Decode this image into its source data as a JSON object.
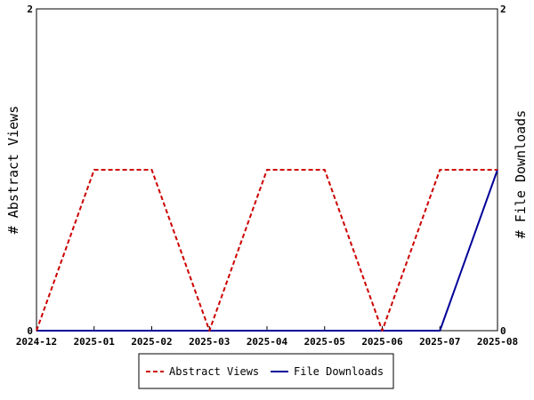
{
  "chart_data": {
    "type": "line",
    "x": [
      "2024-12",
      "2025-01",
      "2025-02",
      "2025-03",
      "2025-04",
      "2025-05",
      "2025-06",
      "2025-07",
      "2025-08"
    ],
    "series": [
      {
        "name": "Abstract Views",
        "values": [
          0,
          1,
          1,
          0,
          1,
          1,
          0,
          1,
          1
        ],
        "color": "#cc0000",
        "style": "dashed",
        "axis": "left"
      },
      {
        "name": "File Downloads",
        "values": [
          0,
          0,
          0,
          0,
          0,
          0,
          0,
          0,
          1
        ],
        "color": "#000099",
        "style": "solid",
        "axis": "right"
      }
    ],
    "ylabel": "# Abstract Views",
    "y2label": "# File Downloads",
    "ylim": [
      0,
      2
    ],
    "y2lim": [
      0,
      2
    ],
    "yticks": [
      "0",
      "2"
    ],
    "y2ticks": [
      "0",
      "2"
    ],
    "grid": false,
    "legend": "bottom-center"
  }
}
